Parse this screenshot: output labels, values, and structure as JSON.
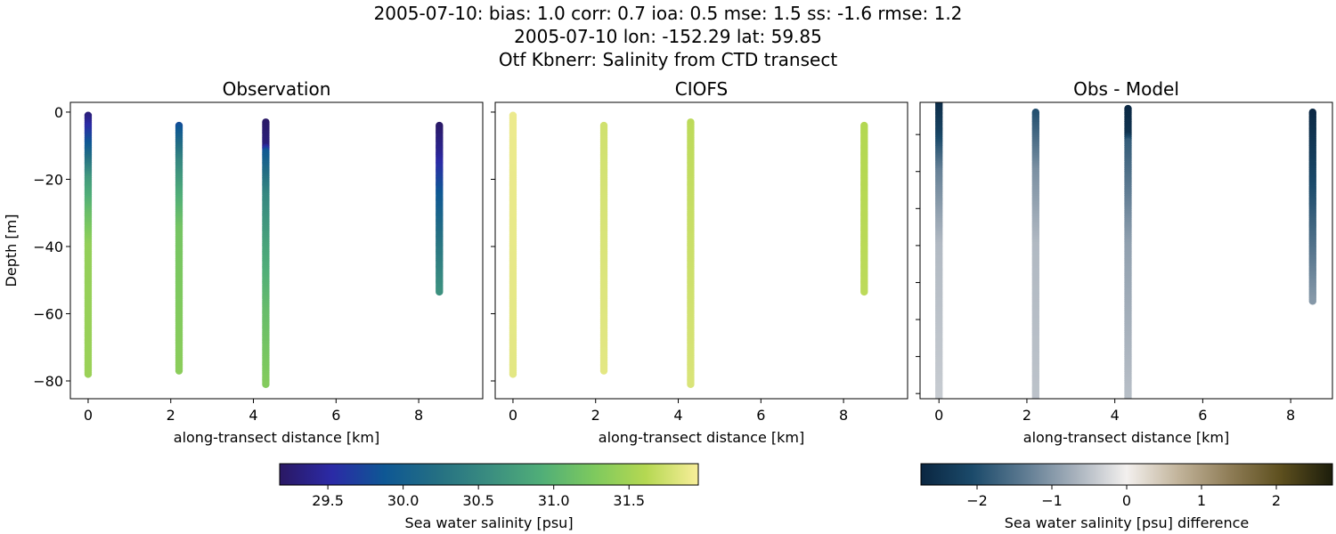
{
  "title_lines": [
    "2005-07-10: bias: 1.0  corr: 0.7  ioa: 0.5  mse: 1.5  ss: -1.6  rmse: 1.2",
    "2005-07-10 lon: -152.29 lat: 59.85",
    "Otf Kbnerr: Salinity from CTD transect"
  ],
  "chart_data": [
    {
      "type": "scatter",
      "title": "Observation",
      "xlabel": "along-transect distance [km]",
      "ylabel": "Depth [m]",
      "xlim": [
        -0.43,
        9.55
      ],
      "ylim": [
        -85.3,
        2.9
      ],
      "xticks": [
        0,
        2,
        4,
        6,
        8
      ],
      "yticks": [
        0,
        -20,
        -40,
        -60,
        -80
      ],
      "ytick_labels": [
        "0",
        "−20",
        "−40",
        "−60",
        "−80"
      ],
      "colormap": "haline",
      "stations": [
        {
          "x": 0.0,
          "profile": [
            [
              -1,
              29.3
            ],
            [
              -10,
              29.9
            ],
            [
              -20,
              30.7
            ],
            [
              -30,
              31.1
            ],
            [
              -40,
              31.4
            ],
            [
              -78,
              31.45
            ]
          ]
        },
        {
          "x": 2.2,
          "profile": [
            [
              -4,
              29.8
            ],
            [
              -15,
              30.5
            ],
            [
              -25,
              30.9
            ],
            [
              -35,
              31.2
            ],
            [
              -77,
              31.35
            ]
          ]
        },
        {
          "x": 4.3,
          "profile": [
            [
              -3,
              29.2
            ],
            [
              -10,
              29.3
            ],
            [
              -12,
              29.9
            ],
            [
              -25,
              30.5
            ],
            [
              -40,
              30.8
            ],
            [
              -60,
              31.1
            ],
            [
              -81,
              31.3
            ]
          ]
        },
        {
          "x": 8.5,
          "profile": [
            [
              -4,
              29.2
            ],
            [
              -12,
              29.4
            ],
            [
              -25,
              29.9
            ],
            [
              -40,
              30.3
            ],
            [
              -53.5,
              30.6
            ]
          ]
        }
      ]
    },
    {
      "type": "scatter",
      "title": "CIOFS",
      "xlabel": "along-transect distance [km]",
      "xlim": [
        -0.43,
        9.55
      ],
      "ylim": [
        -85.3,
        2.9
      ],
      "xticks": [
        0,
        2,
        4,
        6,
        8
      ],
      "yticks": [
        0,
        -20,
        -40,
        -60,
        -80
      ],
      "colormap": "haline",
      "stations": [
        {
          "x": 0.0,
          "profile": [
            [
              -1,
              31.9
            ],
            [
              -78,
              31.85
            ]
          ]
        },
        {
          "x": 2.2,
          "profile": [
            [
              -4,
              31.75
            ],
            [
              -77,
              31.85
            ]
          ]
        },
        {
          "x": 4.3,
          "profile": [
            [
              -3,
              31.65
            ],
            [
              -81,
              31.8
            ]
          ]
        },
        {
          "x": 8.5,
          "profile": [
            [
              -4,
              31.6
            ],
            [
              -53.5,
              31.65
            ]
          ]
        }
      ]
    },
    {
      "type": "scatter",
      "title": "Obs - Model",
      "xlabel": "along-transect distance [km]",
      "xlim": [
        -0.43,
        8.95
      ],
      "ylim": [
        -81.4,
        -1.3
      ],
      "xticks": [
        0,
        2,
        4,
        6,
        8
      ],
      "yticks": [
        -10,
        -20,
        -30,
        -40,
        -50,
        -60,
        -70,
        -80
      ],
      "colormap": "diff",
      "stations": [
        {
          "x": 0.0,
          "profile": [
            [
              0,
              -2.7
            ],
            [
              -10,
              -2.2
            ],
            [
              -20,
              -1.3
            ],
            [
              -40,
              -0.6
            ],
            [
              -82,
              -0.4
            ]
          ]
        },
        {
          "x": 2.2,
          "profile": [
            [
              -4,
              -2.0
            ],
            [
              -20,
              -1.1
            ],
            [
              -40,
              -0.6
            ],
            [
              -81,
              -0.5
            ]
          ]
        },
        {
          "x": 4.3,
          "profile": [
            [
              -3,
              -2.7
            ],
            [
              -10,
              -2.5
            ],
            [
              -12,
              -1.8
            ],
            [
              -40,
              -0.9
            ],
            [
              -86,
              -0.5
            ]
          ]
        },
        {
          "x": 8.5,
          "profile": [
            [
              -4,
              -2.7
            ],
            [
              -20,
              -2.2
            ],
            [
              -55,
              -1.0
            ]
          ]
        }
      ]
    }
  ],
  "colorbars": [
    {
      "label": "Sea water salinity [psu]",
      "vmin": 29.18,
      "vmax": 31.96,
      "ticks": [
        29.5,
        30.0,
        30.5,
        31.0,
        31.5
      ],
      "tick_labels": [
        "29.5",
        "30.0",
        "30.5",
        "31.0",
        "31.5"
      ],
      "colormap": "haline",
      "colors": [
        "#2a1863",
        "#2b2aa6",
        "#0e5794",
        "#246f83",
        "#3a8d80",
        "#50ae78",
        "#7dc95e",
        "#b5d852",
        "#f8ee9a"
      ]
    },
    {
      "label": "Sea water salinity [psu] difference",
      "vmin": -2.75,
      "vmax": 2.75,
      "ticks": [
        -2,
        -1,
        0,
        1,
        2
      ],
      "tick_labels": [
        "−2",
        "−1",
        "0",
        "1",
        "2"
      ],
      "colormap": "diff",
      "colors": [
        "#0a2641",
        "#1b4a6a",
        "#5d7a91",
        "#a7b1bc",
        "#f3f0ee",
        "#c2b49b",
        "#8f7d57",
        "#5d4f1e",
        "#1c1d0b"
      ]
    }
  ]
}
